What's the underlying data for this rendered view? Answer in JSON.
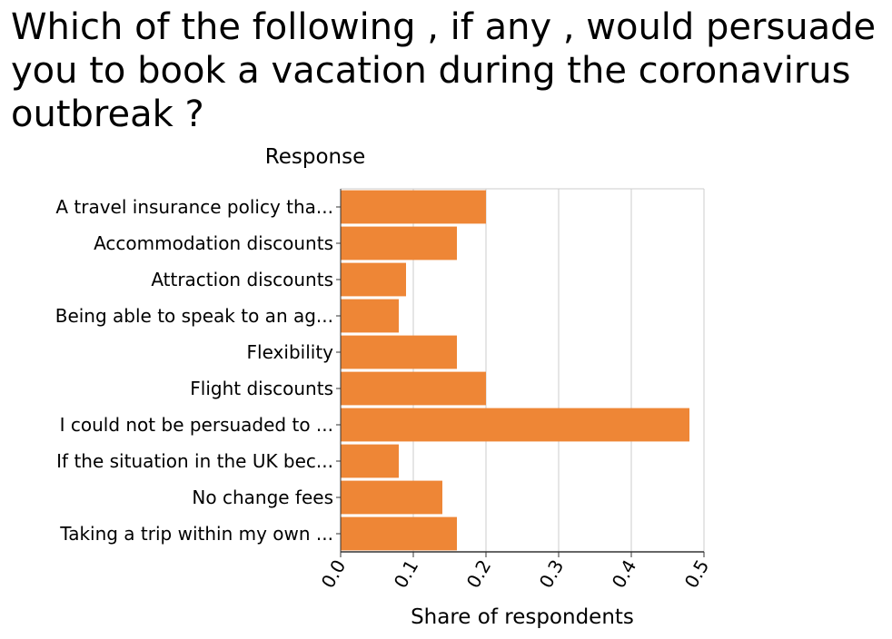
{
  "chart_data": {
    "type": "bar",
    "orientation": "horizontal",
    "title": "Which of the following , if any , would persuade you to book a vacation during the coronavirus outbreak ?",
    "ylabel": "Response",
    "xlabel": "Share of respondents",
    "categories": [
      "A travel insurance policy tha...",
      "Accommodation discounts",
      "Attraction discounts",
      "Being able to speak to an ag...",
      "Flexibility",
      "Flight discounts",
      "I could not be persuaded to ...",
      "If the situation in the UK bec...",
      "No change fees",
      "Taking a trip within my own ..."
    ],
    "values": [
      0.2,
      0.16,
      0.09,
      0.08,
      0.16,
      0.2,
      0.48,
      0.08,
      0.14,
      0.16
    ],
    "xlim": [
      0,
      0.5
    ],
    "xticks": [
      "0.0",
      "0.1",
      "0.2",
      "0.3",
      "0.4",
      "0.5"
    ],
    "grid": true,
    "bar_color": "#ee8636",
    "grid_color": "#cccccc"
  }
}
